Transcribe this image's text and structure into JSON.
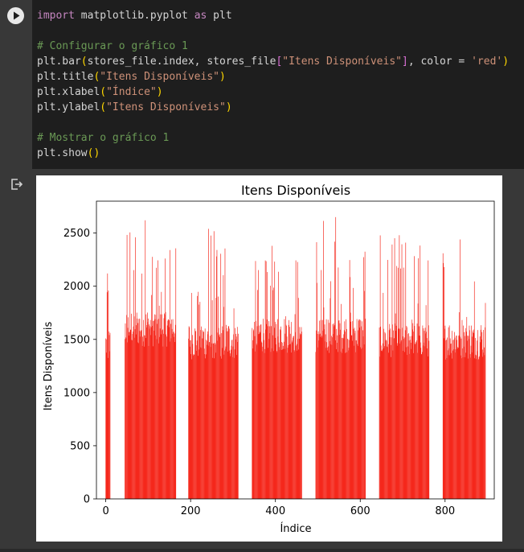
{
  "code_cell": {
    "lines": [
      [
        {
          "t": "import",
          "c": "kw"
        },
        {
          "t": " matplotlib.pyplot ",
          "c": ""
        },
        {
          "t": "as",
          "c": "kw"
        },
        {
          "t": " plt",
          "c": ""
        }
      ],
      [],
      [
        {
          "t": "# Configurar o gráfico 1",
          "c": "cm"
        }
      ],
      [
        {
          "t": "plt.bar",
          "c": ""
        },
        {
          "t": "(",
          "c": "br1"
        },
        {
          "t": "stores_file.index, stores_file",
          "c": ""
        },
        {
          "t": "[",
          "c": "br2"
        },
        {
          "t": "\"Itens Disponíveis\"",
          "c": "str"
        },
        {
          "t": "]",
          "c": "br2"
        },
        {
          "t": ", color = ",
          "c": ""
        },
        {
          "t": "'red'",
          "c": "str"
        },
        {
          "t": ")",
          "c": "br1"
        }
      ],
      [
        {
          "t": "plt.title",
          "c": ""
        },
        {
          "t": "(",
          "c": "br1"
        },
        {
          "t": "\"Itens Disponíveis\"",
          "c": "str"
        },
        {
          "t": ")",
          "c": "br1"
        }
      ],
      [
        {
          "t": "plt.xlabel",
          "c": ""
        },
        {
          "t": "(",
          "c": "br1"
        },
        {
          "t": "\"Índice\"",
          "c": "str"
        },
        {
          "t": ")",
          "c": "br1"
        }
      ],
      [
        {
          "t": "plt.ylabel",
          "c": ""
        },
        {
          "t": "(",
          "c": "br1"
        },
        {
          "t": "\"Itens Disponíveis\"",
          "c": "str"
        },
        {
          "t": ")",
          "c": "br1"
        }
      ],
      [],
      [
        {
          "t": "# Mostrar o gráfico 1",
          "c": "cm"
        }
      ],
      [
        {
          "t": "plt.show",
          "c": ""
        },
        {
          "t": "()",
          "c": "br1"
        }
      ]
    ]
  },
  "colors": {
    "bar": "#f5281c",
    "editor_bg": "#1e1e1e",
    "page_bg": "#383838"
  },
  "icons": {
    "run": "play-icon",
    "output": "output-redirect-icon"
  },
  "chart_data": {
    "type": "bar",
    "title": "Itens Disponíveis",
    "xlabel": "Índice",
    "ylabel": "Itens Disponíveis",
    "xlim": [
      -22,
      916
    ],
    "ylim": [
      0,
      2800
    ],
    "xticks": [
      0,
      200,
      400,
      600,
      800
    ],
    "yticks": [
      0,
      500,
      1000,
      1500,
      2000,
      2500
    ],
    "grid": false,
    "bar_color": "red",
    "groups": [
      {
        "x_start": 0,
        "x_end": 10,
        "base": 1450,
        "peak": 2120
      },
      {
        "x_start": 45,
        "x_end": 165,
        "base": 1620,
        "peak": 2620
      },
      {
        "x_start": 195,
        "x_end": 312,
        "base": 1500,
        "peak": 2540
      },
      {
        "x_start": 345,
        "x_end": 462,
        "base": 1560,
        "peak": 2380
      },
      {
        "x_start": 495,
        "x_end": 612,
        "base": 1560,
        "peak": 2650
      },
      {
        "x_start": 645,
        "x_end": 762,
        "base": 1520,
        "peak": 2480
      },
      {
        "x_start": 795,
        "x_end": 895,
        "base": 1500,
        "peak": 2440
      }
    ]
  }
}
